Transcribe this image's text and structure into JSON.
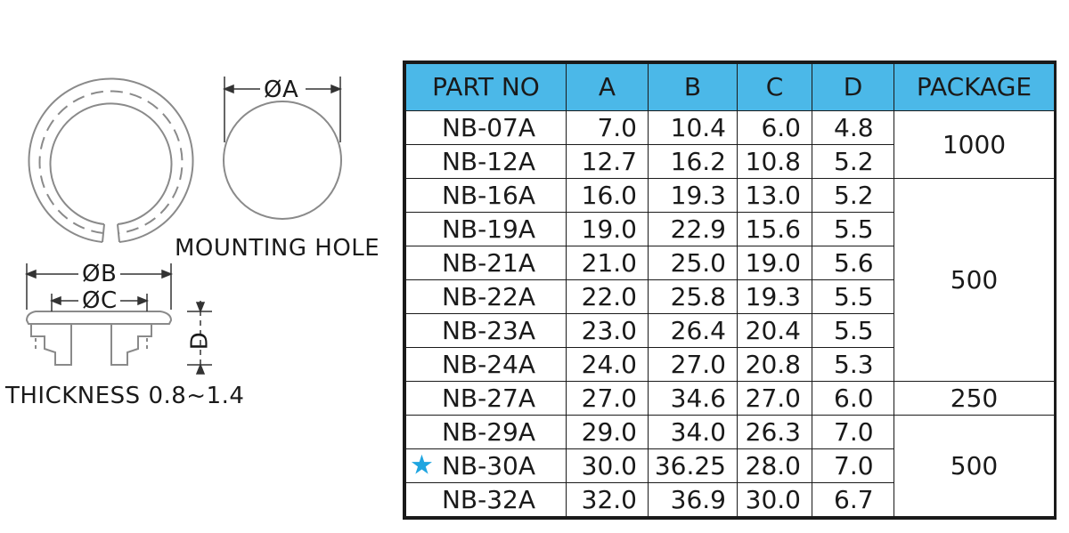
{
  "drawing": {
    "dia_a_label": "ØA",
    "mounting_hole_label": "MOUNTING HOLE",
    "dia_b_label": "ØB",
    "dia_c_label": "ØC",
    "d_label": "D",
    "thickness_label": "THICKNESS 0.8~1.4"
  },
  "table": {
    "headers": [
      "PART NO",
      "A",
      "B",
      "C",
      "D",
      "PACKAGE"
    ],
    "header_color": "#4bb8e8",
    "star_color": "#1fa5e0",
    "rows": [
      {
        "part": "NB-07A",
        "a": "7.0",
        "b": "10.4",
        "c": "6.0",
        "d": "4.8"
      },
      {
        "part": "NB-12A",
        "a": "12.7",
        "b": "16.2",
        "c": "10.8",
        "d": "5.2"
      },
      {
        "part": "NB-16A",
        "a": "16.0",
        "b": "19.3",
        "c": "13.0",
        "d": "5.2"
      },
      {
        "part": "NB-19A",
        "a": "19.0",
        "b": "22.9",
        "c": "15.6",
        "d": "5.5"
      },
      {
        "part": "NB-21A",
        "a": "21.0",
        "b": "25.0",
        "c": "19.0",
        "d": "5.6"
      },
      {
        "part": "NB-22A",
        "a": "22.0",
        "b": "25.8",
        "c": "19.3",
        "d": "5.5"
      },
      {
        "part": "NB-23A",
        "a": "23.0",
        "b": "26.4",
        "c": "20.4",
        "d": "5.5"
      },
      {
        "part": "NB-24A",
        "a": "24.0",
        "b": "27.0",
        "c": "20.8",
        "d": "5.3"
      },
      {
        "part": "NB-27A",
        "a": "27.0",
        "b": "34.6",
        "c": "27.0",
        "d": "6.0"
      },
      {
        "part": "NB-29A",
        "a": "29.0",
        "b": "34.0",
        "c": "26.3",
        "d": "7.0"
      },
      {
        "part": "NB-30A",
        "a": "30.0",
        "b": "36.25",
        "c": "28.0",
        "d": "7.0",
        "starred": true
      },
      {
        "part": "NB-32A",
        "a": "32.0",
        "b": "36.9",
        "c": "30.0",
        "d": "6.7"
      }
    ],
    "packages": [
      "1000",
      "500",
      "250",
      "500"
    ]
  }
}
